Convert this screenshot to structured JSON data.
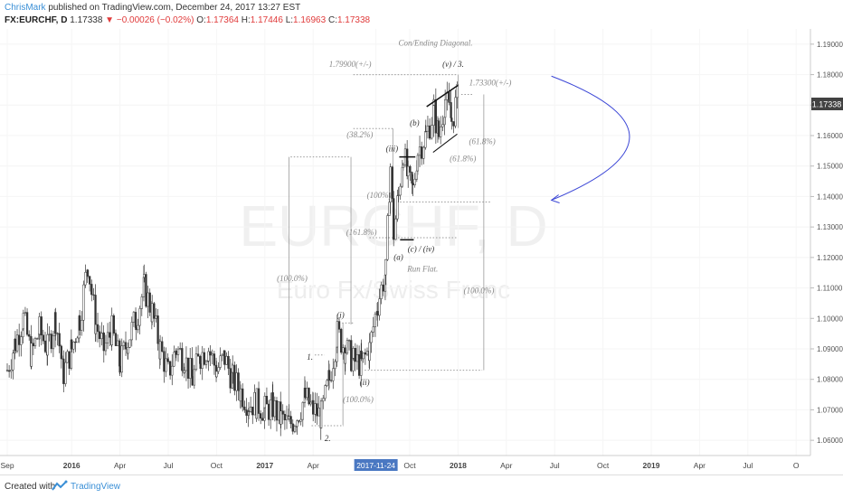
{
  "header": {
    "author": "ChrisMark",
    "published_text": "published on TradingView.com, December 24, 2017 13:27 EST",
    "symbol": "FX:EURCHF, D",
    "last": "1.17338",
    "change": "▼ −0.00026 (−0.02%)",
    "o_label": "O:",
    "o_value": "1.17364",
    "h_label": "H:",
    "h_value": "1.17446",
    "l_label": "L:",
    "l_value": "1.16963",
    "c_label": "C:",
    "c_value": "1.17338"
  },
  "watermark": {
    "line1": "EURCHF, D",
    "line2": "Euro Fx/Swiss Franc"
  },
  "price_badge": "1.17338",
  "chart_data": {
    "type": "candlestick",
    "symbol": "FX:EURCHF",
    "interval": "D",
    "ylim": [
      1.055,
      1.195
    ],
    "y_ticks": [
      "1.19000",
      "1.18000",
      "1.17000",
      "1.16000",
      "1.15000",
      "1.14000",
      "1.13000",
      "1.12000",
      "1.11000",
      "1.10000",
      "1.09000",
      "1.08000",
      "1.07000",
      "1.06000"
    ],
    "x_ticks": [
      {
        "label": "Sep",
        "t": 0
      },
      {
        "label": "2016",
        "t": 4
      },
      {
        "label": "Apr",
        "t": 7
      },
      {
        "label": "Jul",
        "t": 10
      },
      {
        "label": "Oct",
        "t": 13
      },
      {
        "label": "2017",
        "t": 16
      },
      {
        "label": "Apr",
        "t": 19
      },
      {
        "label": "2017-11-24",
        "t": 22.9,
        "highlight": true
      },
      {
        "label": "Oct",
        "t": 25
      },
      {
        "label": "2018",
        "t": 28
      },
      {
        "label": "Apr",
        "t": 31
      },
      {
        "label": "Jul",
        "t": 34
      },
      {
        "label": "Oct",
        "t": 37
      },
      {
        "label": "2019",
        "t": 40
      },
      {
        "label": "Apr",
        "t": 43
      },
      {
        "label": "Jul",
        "t": 46
      },
      {
        "label": "O",
        "t": 49
      }
    ],
    "path": [
      [
        0,
        1.083
      ],
      [
        0.5,
        1.092
      ],
      [
        1,
        1.1
      ],
      [
        1.5,
        1.088
      ],
      [
        2,
        1.096
      ],
      [
        2.5,
        1.09
      ],
      [
        3,
        1.1
      ],
      [
        3.5,
        1.082
      ],
      [
        4,
        1.09
      ],
      [
        4.5,
        1.1
      ],
      [
        5,
        1.118
      ],
      [
        5.5,
        1.098
      ],
      [
        6,
        1.09
      ],
      [
        6.5,
        1.096
      ],
      [
        7,
        1.085
      ],
      [
        7.5,
        1.093
      ],
      [
        8,
        1.1
      ],
      [
        8.5,
        1.11
      ],
      [
        9,
        1.102
      ],
      [
        9.5,
        1.09
      ],
      [
        10,
        1.082
      ],
      [
        10.5,
        1.09
      ],
      [
        11,
        1.087
      ],
      [
        11.5,
        1.08
      ],
      [
        12,
        1.088
      ],
      [
        12.5,
        1.09
      ],
      [
        13,
        1.083
      ],
      [
        13.5,
        1.087
      ],
      [
        14,
        1.08
      ],
      [
        14.5,
        1.076
      ],
      [
        15,
        1.072
      ],
      [
        15.5,
        1.072
      ],
      [
        16,
        1.07
      ],
      [
        16.5,
        1.071
      ],
      [
        17,
        1.067
      ],
      [
        17.5,
        1.065
      ],
      [
        18,
        1.068
      ],
      [
        18.5,
        1.074
      ],
      [
        19,
        1.07
      ],
      [
        19.5,
        1.068
      ],
      [
        20,
        1.08
      ],
      [
        20.5,
        1.095
      ],
      [
        21,
        1.09
      ],
      [
        21.5,
        1.086
      ],
      [
        22,
        1.085
      ],
      [
        22.5,
        1.09
      ],
      [
        23,
        1.105
      ],
      [
        23.5,
        1.115
      ],
      [
        23.8,
        1.15
      ],
      [
        24,
        1.128
      ],
      [
        24.3,
        1.14
      ],
      [
        24.6,
        1.155
      ],
      [
        24.9,
        1.145
      ],
      [
        25.2,
        1.142
      ],
      [
        25.5,
        1.155
      ],
      [
        26,
        1.16
      ],
      [
        26.5,
        1.168
      ],
      [
        26.8,
        1.16
      ],
      [
        27.2,
        1.172
      ],
      [
        27.6,
        1.165
      ],
      [
        28,
        1.173
      ]
    ],
    "channel": [
      {
        "from": [
          26.05,
          1.1695
        ],
        "to": [
          28,
          1.1765
        ],
        "color": "#111111",
        "width": 1.5
      },
      {
        "from": [
          26.45,
          1.1545
        ],
        "to": [
          27.95,
          1.1605
        ],
        "color": "#111111",
        "width": 1.0
      },
      {
        "from": [
          24.35,
          1.153
        ],
        "to": [
          25.35,
          1.153
        ],
        "color": "#111111",
        "width": 1.5
      },
      {
        "from": [
          24.4,
          1.1258
        ],
        "to": [
          25.25,
          1.1258
        ],
        "color": "#111111",
        "width": 1.5
      }
    ],
    "annotations": [
      {
        "text": "Con/Ending Diagonal.",
        "t": 26.6,
        "y": 1.1895
      },
      {
        "text": "(v) / 3.",
        "t": 27.7,
        "y": 1.1825,
        "dark": true
      },
      {
        "text": "1.79900(+/-)",
        "t": 21.3,
        "y": 1.1825
      },
      {
        "text": "1.73300(+/-)",
        "t": 30.0,
        "y": 1.1765
      },
      {
        "text": "(38.2%)",
        "t": 21.9,
        "y": 1.1594
      },
      {
        "text": "(b)",
        "t": 25.3,
        "y": 1.1633,
        "dark": true
      },
      {
        "text": "(iii)",
        "t": 23.9,
        "y": 1.1548,
        "dark": true
      },
      {
        "text": "(61.8%)",
        "t": 29.5,
        "y": 1.1572
      },
      {
        "text": "(61.8%)",
        "t": 28.3,
        "y": 1.1515
      },
      {
        "text": "(100%)",
        "t": 23.1,
        "y": 1.1395
      },
      {
        "text": "(161.8%)",
        "t": 22.0,
        "y": 1.1274
      },
      {
        "text": "(c) / (iv)",
        "t": 25.7,
        "y": 1.1219,
        "dark": true
      },
      {
        "text": "(a)",
        "t": 24.3,
        "y": 1.1192,
        "dark": true
      },
      {
        "text": "Run Flat.",
        "t": 25.8,
        "y": 1.1153
      },
      {
        "text": "(100.0%)",
        "t": 17.7,
        "y": 1.1122
      },
      {
        "text": "(100.0%)",
        "t": 29.3,
        "y": 1.1083
      },
      {
        "text": "(i)",
        "t": 20.7,
        "y": 1.1003,
        "dark": true
      },
      {
        "text": "1.",
        "t": 18.8,
        "y": 1.0865,
        "dark": true
      },
      {
        "text": "(ii)",
        "t": 22.2,
        "y": 1.0782,
        "dark": true
      },
      {
        "text": "(100.0%)",
        "t": 21.8,
        "y": 1.0725
      },
      {
        "text": "2.",
        "t": 19.9,
        "y": 1.0598,
        "dark": true
      }
    ],
    "dotted_levels": [
      {
        "from": [
          21.5,
          1.18
        ],
        "to": [
          28.0,
          1.18
        ]
      },
      {
        "from": [
          17.6,
          1.153
        ],
        "to": [
          21.3,
          1.153
        ]
      },
      {
        "from": [
          21.5,
          1.1623
        ],
        "to": [
          24.0,
          1.1623
        ]
      },
      {
        "from": [
          24.2,
          1.1382
        ],
        "to": [
          30.0,
          1.1382
        ]
      },
      {
        "from": [
          28.2,
          1.1735
        ],
        "to": [
          28.9,
          1.1735
        ]
      },
      {
        "from": [
          22.5,
          1.1265
        ],
        "to": [
          28.0,
          1.1265
        ]
      },
      {
        "from": [
          20.8,
          1.0985
        ],
        "to": [
          21.5,
          1.0985
        ]
      },
      {
        "from": [
          22.2,
          1.083
        ],
        "to": [
          29.5,
          1.083
        ]
      },
      {
        "from": [
          18.9,
          1.0648
        ],
        "to": [
          20.9,
          1.0648
        ]
      },
      {
        "from": [
          19.1,
          1.088
        ],
        "to": [
          19.7,
          1.088
        ]
      }
    ],
    "measure_lines": [
      {
        "t": 17.5,
        "y1": 1.153,
        "y2": 1.066
      },
      {
        "t": 21.35,
        "y1": 1.153,
        "y2": 1.098
      },
      {
        "t": 20.85,
        "y1": 1.0985,
        "y2": 1.065
      },
      {
        "t": 28.0,
        "y1": 1.18,
        "y2": 1.1625
      },
      {
        "t": 29.6,
        "y1": 1.1735,
        "y2": 1.083
      },
      {
        "t": 23.95,
        "y1": 1.1623,
        "y2": 1.1265
      }
    ],
    "projection": {
      "color": "#3b46d6",
      "start": [
        33.8,
        1.1795
      ],
      "control": [
        43.5,
        1.16
      ],
      "end": [
        33.8,
        1.1388
      ]
    }
  },
  "footer": {
    "created_with": "Created with",
    "brand": "TradingView"
  }
}
